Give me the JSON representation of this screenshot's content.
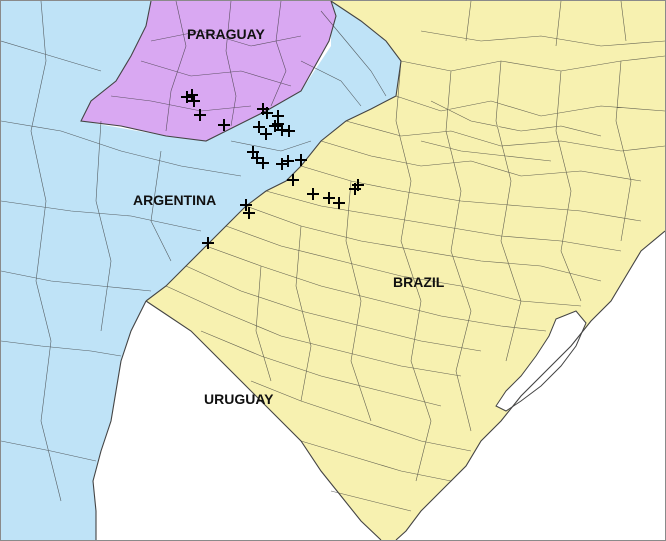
{
  "map": {
    "labels": {
      "paraguay": "PARAGUAY",
      "argentina": "ARGENTINA",
      "brazil": "BRAZIL",
      "uruguay": "URUGUAY"
    },
    "colors": {
      "paraguay": "#d9a8f2",
      "argentina": "#bfe3f7",
      "brazil": "#f7f1b0",
      "uruguay": "#ffffff",
      "water": "#ffffff"
    },
    "marker_icon": "plus-marker-icon",
    "marker_count": 29
  }
}
